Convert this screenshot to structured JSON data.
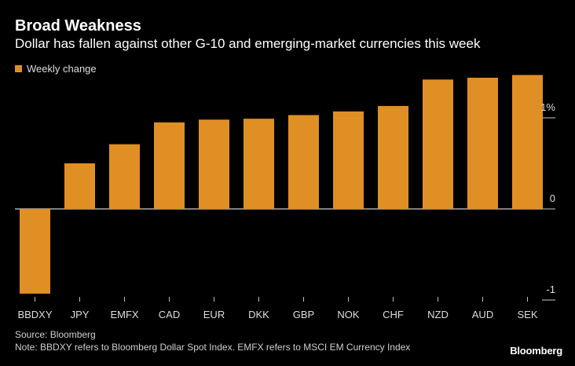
{
  "chart_data": {
    "type": "bar",
    "title": "Broad Weakness",
    "subtitle": "Dollar has fallen against other G-10 and emerging-market currencies this week",
    "legend": [
      {
        "name": "Weekly change",
        "color": "#e08f25"
      }
    ],
    "legend_position": "top-left",
    "categories": [
      "BBDXY",
      "JPY",
      "EMFX",
      "CAD",
      "EUR",
      "DKK",
      "GBP",
      "NOK",
      "CHF",
      "NZD",
      "AUD",
      "SEK"
    ],
    "series": [
      {
        "name": "Weekly change",
        "values": [
          -0.93,
          0.5,
          0.71,
          0.95,
          0.98,
          0.99,
          1.03,
          1.07,
          1.13,
          1.42,
          1.44,
          1.47
        ]
      }
    ],
    "y_ticks": [
      {
        "value": 1,
        "label": "1%"
      },
      {
        "value": 0,
        "label": "0"
      },
      {
        "value": -1,
        "label": "-1"
      }
    ],
    "ylim": [
      -1.05,
      1.6
    ],
    "axis_position": "right",
    "grid": false
  },
  "footer": {
    "source": "Source: Bloomberg",
    "note": "Note: BBDXY refers to Bloomberg Dollar Spot Index. EMFX refers to MSCI EM Currency Index",
    "brand": "Bloomberg"
  }
}
